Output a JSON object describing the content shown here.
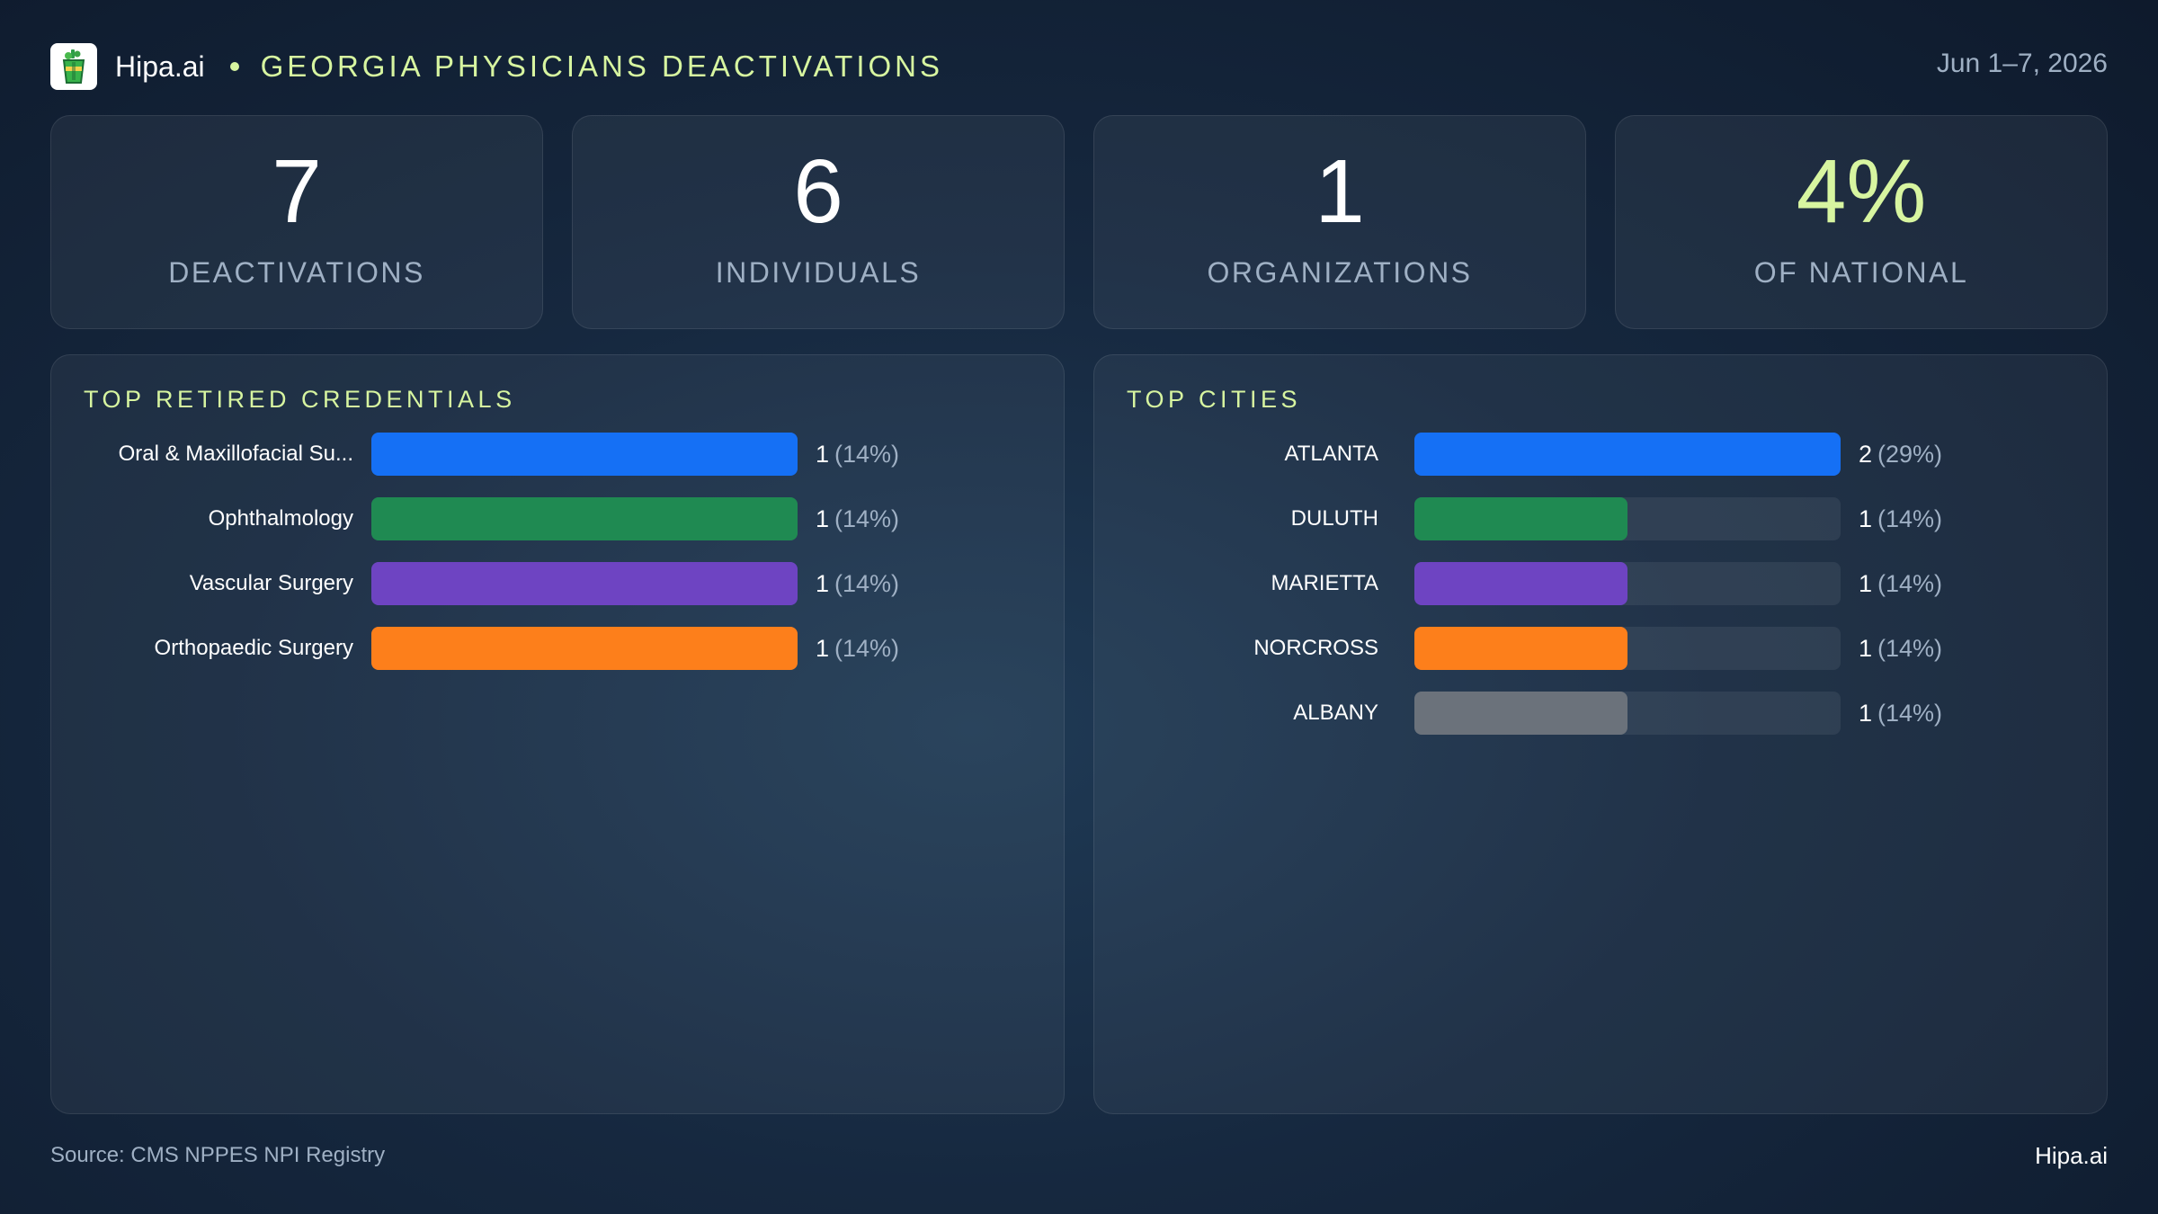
{
  "header": {
    "brand": "Hipa.ai",
    "title": "GEORGIA PHYSICIANS DEACTIVATIONS",
    "date": "Jun 1–7, 2026",
    "logo_icon": "cup-logo-icon"
  },
  "colors": {
    "accent": "#d7f5a0",
    "blue": "#1570f5",
    "green": "#1f8a52",
    "purple": "#6e44c2",
    "orange": "#fd7f1b",
    "gray": "#6b727b",
    "muted_text": "#9fb0c4"
  },
  "kpis": [
    {
      "value": "7",
      "label": "DEACTIVATIONS",
      "highlight": false
    },
    {
      "value": "6",
      "label": "INDIVIDUALS",
      "highlight": false
    },
    {
      "value": "1",
      "label": "ORGANIZATIONS",
      "highlight": false
    },
    {
      "value": "4%",
      "label": "OF NATIONAL",
      "highlight": true
    }
  ],
  "chart_data": [
    {
      "type": "bar",
      "orientation": "horizontal",
      "title": "TOP RETIRED CREDENTIALS",
      "categories": [
        "Oral & Maxillofacial Su...",
        "Ophthalmology",
        "Vascular Surgery",
        "Orthopaedic Surgery"
      ],
      "values": [
        1,
        1,
        1,
        1
      ],
      "value_labels": [
        "1",
        "1",
        "1",
        "1"
      ],
      "percent_labels": [
        "(14%)",
        "(14%)",
        "(14%)",
        "(14%)"
      ],
      "colors": [
        "#1570f5",
        "#1f8a52",
        "#6e44c2",
        "#fd7f1b"
      ],
      "xlim": [
        0,
        1
      ]
    },
    {
      "type": "bar",
      "orientation": "horizontal",
      "title": "TOP CITIES",
      "categories": [
        "ATLANTA",
        "DULUTH",
        "MARIETTA",
        "NORCROSS",
        "ALBANY"
      ],
      "values": [
        2,
        1,
        1,
        1,
        1
      ],
      "value_labels": [
        "2",
        "1",
        "1",
        "1",
        "1"
      ],
      "percent_labels": [
        "(29%)",
        "(14%)",
        "(14%)",
        "(14%)",
        "(14%)"
      ],
      "colors": [
        "#1570f5",
        "#1f8a52",
        "#6e44c2",
        "#fd7f1b",
        "#6b727b"
      ],
      "xlim": [
        0,
        2
      ]
    }
  ],
  "footer": {
    "source": "Source: CMS NPPES NPI Registry",
    "brand": "Hipa.ai"
  }
}
